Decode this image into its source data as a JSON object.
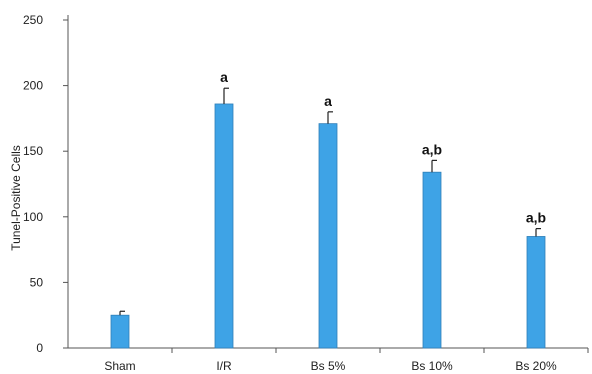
{
  "chart_data": {
    "type": "bar",
    "title": "",
    "xlabel": "",
    "ylabel": "Tunel-Positive Cells",
    "categories": [
      "Sham",
      "I/R",
      "Bs 5%",
      "Bs 10%",
      "Bs 20%"
    ],
    "values": [
      25,
      186,
      171,
      134,
      85
    ],
    "error_upper": [
      3,
      12,
      9,
      9,
      6
    ],
    "significance_labels": [
      "",
      "a",
      "a",
      "a,b",
      "a,b"
    ],
    "ylim": [
      0,
      250
    ],
    "yticks": [
      0,
      50,
      100,
      150,
      200,
      250
    ],
    "grid": false,
    "legend": "none",
    "bar_color": "#3ea3e6",
    "bar_edge_color": "#2f7fb8",
    "axis_color": "#555555"
  }
}
